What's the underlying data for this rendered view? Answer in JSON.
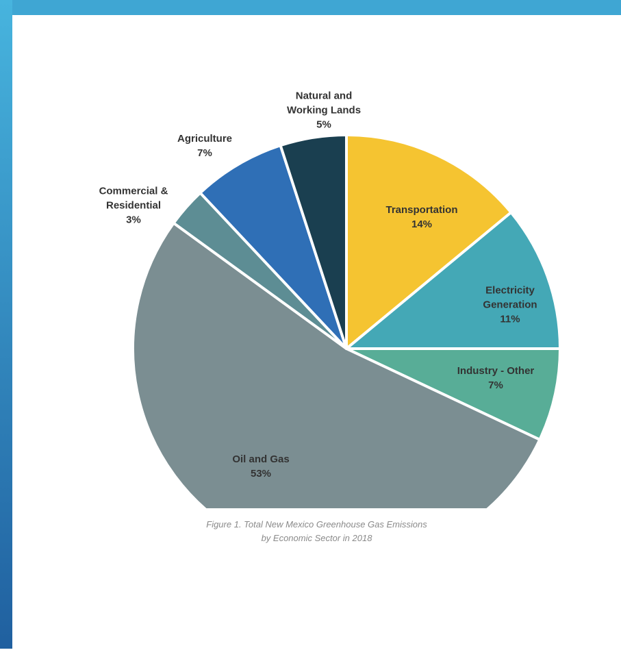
{
  "frame": {
    "top_color": "#3fa6d3",
    "left_color_top": "#47b4de",
    "left_color_bottom": "#1f5e9e"
  },
  "chart_data": {
    "type": "pie",
    "slices": [
      {
        "label_lines": [
          "Transportation",
          "14%"
        ],
        "value": 14,
        "color": "#f5c431"
      },
      {
        "label_lines": [
          "Electricity",
          "Generation",
          "11%"
        ],
        "value": 11,
        "color": "#44a8b6"
      },
      {
        "label_lines": [
          "Industry - Other",
          "7%"
        ],
        "value": 7,
        "color": "#58ad97"
      },
      {
        "label_lines": [
          "Oil and Gas",
          "53%"
        ],
        "value": 53,
        "color": "#7b8e92"
      },
      {
        "label_lines": [
          "Commercial &",
          "Residential",
          "3%"
        ],
        "value": 3,
        "color": "#5d8d94"
      },
      {
        "label_lines": [
          "Agriculture",
          "7%"
        ],
        "value": 7,
        "color": "#2f6fb6"
      },
      {
        "label_lines": [
          "Natural and",
          "Working Lands",
          "5%"
        ],
        "value": 5,
        "color": "#1a3f50"
      }
    ],
    "start": "top",
    "direction": "clockwise"
  },
  "caption": {
    "line1": "Figure 1. Total New Mexico Greenhouse Gas Emissions",
    "line2": "by Economic Sector in 2018"
  }
}
